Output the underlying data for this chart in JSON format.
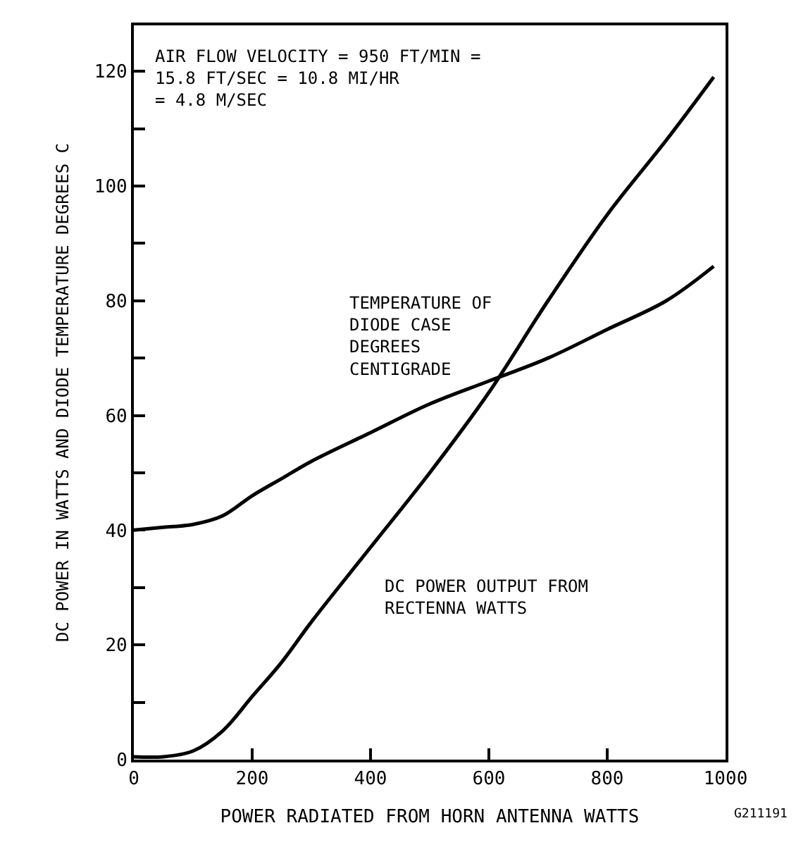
{
  "chart_data": {
    "type": "line",
    "xlabel": "POWER RADIATED FROM HORN ANTENNA WATTS",
    "ylabel": "DC POWER IN WATTS AND DIODE TEMPERATURE DEGREES C",
    "xlim": [
      0,
      1000
    ],
    "xticks": [
      0,
      200,
      400,
      600,
      800,
      1000
    ],
    "ylim": [
      0,
      128
    ],
    "yticks": [
      0,
      {
        "value": 10,
        "label": null
      },
      20,
      {
        "value": 30,
        "label": null
      },
      40,
      {
        "value": 50,
        "label": null
      },
      60,
      {
        "value": 70,
        "label": null
      },
      80,
      {
        "value": 90,
        "label": null
      },
      100,
      {
        "value": 110,
        "label": null
      },
      120
    ],
    "legend": false,
    "marker": "none",
    "line_style": "solid",
    "series": [
      {
        "name": "TEMPERATURE OF\nDIODE CASE\nDEGREES\nCENTIGRADE",
        "color": "#000000",
        "x": [
          0,
          50,
          100,
          150,
          200,
          250,
          300,
          400,
          500,
          600,
          700,
          800,
          900,
          980
        ],
        "values": [
          40,
          40.5,
          41,
          42.5,
          46,
          49,
          52,
          57,
          62,
          66,
          70,
          75,
          80,
          86
        ]
      },
      {
        "name": "DC POWER OUTPUT FROM\nRECTENNA WATTS",
        "color": "#000000",
        "x": [
          0,
          50,
          100,
          150,
          200,
          250,
          300,
          400,
          500,
          600,
          700,
          800,
          900,
          980
        ],
        "values": [
          0.5,
          0.5,
          1.5,
          5,
          11,
          17,
          24,
          37,
          50,
          64,
          80,
          95,
          108,
          119
        ]
      }
    ],
    "annotations": [
      "AIR FLOW VELOCITY = 950 FT/MIN =\n15.8 FT/SEC = 10.8 MI/HR\n= 4.8 M/SEC",
      "G211191"
    ]
  }
}
